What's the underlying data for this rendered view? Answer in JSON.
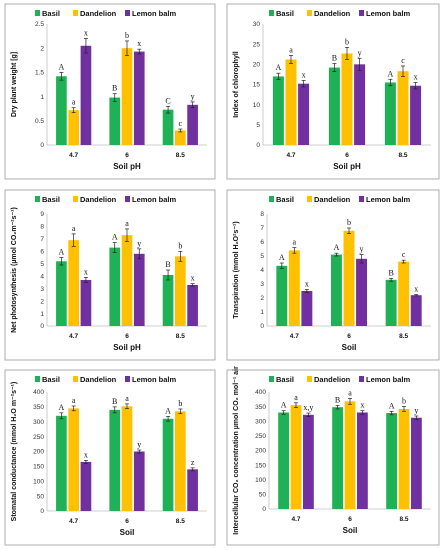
{
  "legend_colors": [
    "#1fb155",
    "#ffc000",
    "#7030a0"
  ],
  "chart_data": [
    {
      "type": "bar",
      "categories": [
        "4.7",
        "6",
        "8.5"
      ],
      "series": [
        {
          "name": "Basil",
          "values": [
            1.42,
            0.98,
            0.73
          ],
          "errors": [
            0.08,
            0.08,
            0.07
          ],
          "letters": [
            "A",
            "B",
            "C"
          ]
        },
        {
          "name": "Dandelion",
          "values": [
            0.72,
            2.0,
            0.3
          ],
          "errors": [
            0.05,
            0.15,
            0.03
          ],
          "letters": [
            "a",
            "b",
            "c"
          ]
        },
        {
          "name": "Lemon balm",
          "values": [
            2.05,
            1.93,
            0.83
          ],
          "errors": [
            0.15,
            0.05,
            0.06
          ],
          "letters": [
            "x",
            "x",
            "y"
          ]
        }
      ],
      "xlabel": "Soil pH",
      "ylabel": "Dry plant weight [g]",
      "ylim": [
        0,
        2.5
      ],
      "yticks": [
        "0",
        "0.5",
        "1",
        "1.5",
        "2",
        "2.5"
      ],
      "grid": false,
      "legend_position": "top"
    },
    {
      "type": "bar",
      "categories": [
        "4.7",
        "6",
        "8.5"
      ],
      "series": [
        {
          "name": "Basil",
          "values": [
            17.0,
            19.2,
            15.5
          ],
          "errors": [
            0.8,
            1.0,
            0.8
          ],
          "letters": [
            "A",
            "B",
            "A"
          ]
        },
        {
          "name": "Dandelion",
          "values": [
            21.2,
            22.7,
            18.3
          ],
          "errors": [
            1.0,
            1.5,
            1.3
          ],
          "letters": [
            "a",
            "b",
            "c"
          ]
        },
        {
          "name": "Lemon balm",
          "values": [
            15.2,
            20.0,
            14.7
          ],
          "errors": [
            0.8,
            1.5,
            0.8
          ],
          "letters": [
            "x",
            "y",
            "x"
          ]
        }
      ],
      "xlabel": "Soil pH",
      "ylabel": "Index of chlorophyll",
      "ylim": [
        0,
        30
      ],
      "yticks": [
        "0",
        "5",
        "10",
        "15",
        "20",
        "25",
        "30"
      ],
      "grid": false,
      "legend_position": "top"
    },
    {
      "type": "bar",
      "categories": [
        "4.7",
        "6",
        "8.5"
      ],
      "series": [
        {
          "name": "Basil",
          "values": [
            5.2,
            6.3,
            4.1
          ],
          "errors": [
            0.3,
            0.4,
            0.4
          ],
          "letters": [
            "A",
            "A",
            "B"
          ]
        },
        {
          "name": "Dandelion",
          "values": [
            6.9,
            7.3,
            5.6
          ],
          "errors": [
            0.5,
            0.5,
            0.4
          ],
          "letters": [
            "a",
            "a",
            "b"
          ]
        },
        {
          "name": "Lemon balm",
          "values": [
            3.7,
            5.8,
            3.3
          ],
          "errors": [
            0.2,
            0.4,
            0.1
          ],
          "letters": [
            "x",
            "y",
            "x"
          ]
        }
      ],
      "xlabel": "Soil pH",
      "ylabel": "Net photosynthesis (µmol CO₂m⁻²s⁻¹)",
      "ylim": [
        0,
        9
      ],
      "yticks": [
        "0",
        "1",
        "2",
        "3",
        "4",
        "5",
        "6",
        "7",
        "8",
        "9"
      ],
      "grid": false,
      "legend_position": "top"
    },
    {
      "type": "bar",
      "categories": [
        "4.7",
        "6",
        "8.5"
      ],
      "series": [
        {
          "name": "Basil",
          "values": [
            4.3,
            5.1,
            3.3
          ],
          "errors": [
            0.2,
            0.1,
            0.1
          ],
          "letters": [
            "A",
            "A",
            "B"
          ]
        },
        {
          "name": "Dandelion",
          "values": [
            5.4,
            6.8,
            4.6
          ],
          "errors": [
            0.2,
            0.2,
            0.1
          ],
          "letters": [
            "a",
            "b",
            "c"
          ]
        },
        {
          "name": "Lemon balm",
          "values": [
            2.5,
            4.8,
            2.2
          ],
          "errors": [
            0.1,
            0.3,
            0.05
          ],
          "letters": [
            "x",
            "y",
            "x"
          ]
        }
      ],
      "xlabel": "Soil",
      "ylabel": "Transpiration (mmol H₂O²s⁻¹)",
      "ylim": [
        0,
        8
      ],
      "yticks": [
        "0",
        "1",
        "2",
        "3",
        "4",
        "5",
        "6",
        "7",
        "8"
      ],
      "grid": false,
      "legend_position": "top"
    },
    {
      "type": "bar",
      "categories": [
        "4.7",
        "6",
        "8.5"
      ],
      "series": [
        {
          "name": "Basil",
          "values": [
            320,
            340,
            310
          ],
          "errors": [
            10,
            10,
            8
          ],
          "letters": [
            "A",
            "B",
            "A"
          ]
        },
        {
          "name": "Dandelion",
          "values": [
            345,
            352,
            335
          ],
          "errors": [
            8,
            8,
            8
          ],
          "letters": [
            "a",
            "a",
            "b"
          ]
        },
        {
          "name": "Lemon balm",
          "values": [
            165,
            200,
            140
          ],
          "errors": [
            5,
            5,
            5
          ],
          "letters": [
            "x",
            "y",
            "z"
          ]
        }
      ],
      "xlabel": "Soil",
      "ylabel": "Stomatal conductance (mmol H₂O m⁻²s⁻¹)",
      "ylim": [
        0,
        400
      ],
      "yticks": [
        "0",
        "50",
        "100",
        "150",
        "200",
        "250",
        "300",
        "350",
        "400"
      ],
      "grid": false,
      "legend_position": "top"
    },
    {
      "type": "bar",
      "categories": [
        "4.7",
        "6",
        "8.5"
      ],
      "series": [
        {
          "name": "Basil",
          "values": [
            330,
            348,
            328
          ],
          "errors": [
            6,
            6,
            6
          ],
          "letters": [
            "A",
            "B",
            "A"
          ]
        },
        {
          "name": "Dandelion",
          "values": [
            355,
            368,
            342
          ],
          "errors": [
            8,
            10,
            8
          ],
          "letters": [
            "a",
            "a",
            "b"
          ]
        },
        {
          "name": "Lemon balm",
          "values": [
            322,
            330,
            312
          ],
          "errors": [
            6,
            6,
            6
          ],
          "letters": [
            "x,y",
            "x",
            "y"
          ]
        }
      ],
      "xlabel": "Soil",
      "ylabel": "Intercellular CO₂ concentration µmol CO₂ mol⁻¹ air",
      "ylim": [
        0,
        400
      ],
      "yticks": [
        "0",
        "50",
        "100",
        "150",
        "200",
        "250",
        "300",
        "350",
        "400"
      ],
      "grid": false,
      "legend_position": "top"
    }
  ]
}
